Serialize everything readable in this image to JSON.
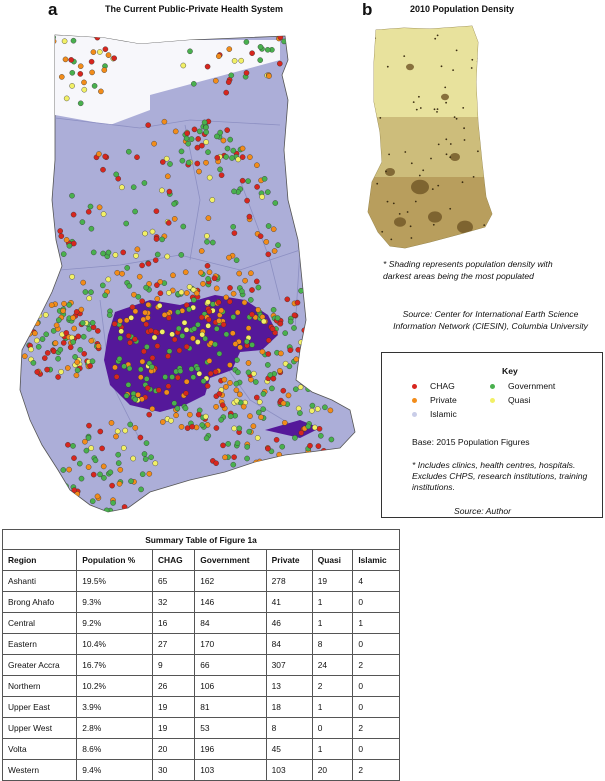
{
  "panel_a": {
    "letter": "a",
    "title": "The Current Public-Private Health System",
    "colors": {
      "CHAG": "#d7261e",
      "Private": "#f28c1a",
      "Government": "#49b04e",
      "Quasi": "#f2f066",
      "Islamic": "#c9cde8",
      "region_fill": "#acaed8",
      "ashanti_fill": "#55189a",
      "north_fill": "#f7f7fb"
    }
  },
  "panel_b": {
    "letter": "b",
    "title": "2010 Population Density",
    "note": "* Shading represents population density with darkest areas being the most populated",
    "source": "Source: Center for International Earth Science Information Network (CIESIN), Columbia University"
  },
  "key": {
    "title": "Key",
    "items": [
      {
        "label": "CHAG",
        "color": "#d7261e"
      },
      {
        "label": "Government",
        "color": "#49b04e"
      },
      {
        "label": "Private",
        "color": "#f28c1a"
      },
      {
        "label": "Quasi",
        "color": "#f2f066"
      },
      {
        "label": "Islamic",
        "color": "#c9cde8"
      }
    ],
    "base": "Base:   2015 Population Figures",
    "note": "* Includes clinics, health centres, hospitals. Excludes CHPS, research institutions, training institutions.",
    "source": "Source: Author"
  },
  "summary_table": {
    "caption": "Summary Table of Figure 1a",
    "headers": [
      "Region",
      "Population %",
      "CHAG",
      "Government",
      "Private",
      "Quasi",
      "Islamic"
    ],
    "rows": [
      [
        "Ashanti",
        "19.5%",
        "65",
        "162",
        "278",
        "19",
        "4"
      ],
      [
        "Brong Ahafo",
        "9.3%",
        "32",
        "146",
        "41",
        "1",
        "0"
      ],
      [
        "Central",
        "9.2%",
        "16",
        "84",
        "46",
        "1",
        "1"
      ],
      [
        "Eastern",
        "10.4%",
        "27",
        "170",
        "84",
        "8",
        "0"
      ],
      [
        "Greater Accra",
        "16.7%",
        "9",
        "66",
        "307",
        "24",
        "2"
      ],
      [
        "Northern",
        "10.2%",
        "26",
        "106",
        "13",
        "2",
        "0"
      ],
      [
        "Upper East",
        "3.9%",
        "19",
        "81",
        "18",
        "1",
        "0"
      ],
      [
        "Upper West",
        "2.8%",
        "19",
        "53",
        "8",
        "0",
        "2"
      ],
      [
        "Volta",
        "8.6%",
        "20",
        "196",
        "45",
        "1",
        "0"
      ],
      [
        "Western",
        "9.4%",
        "30",
        "103",
        "103",
        "20",
        "2"
      ]
    ]
  }
}
